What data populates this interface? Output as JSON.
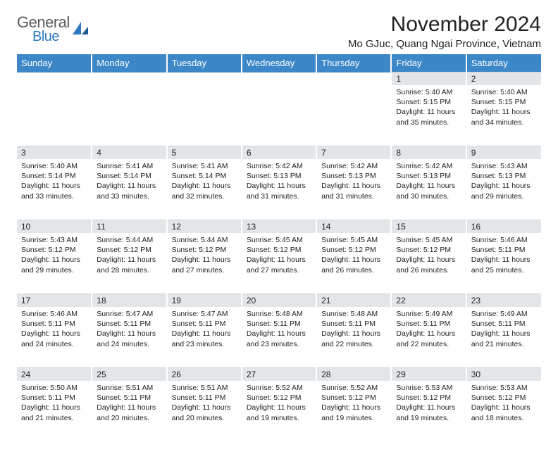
{
  "logo": {
    "general": "General",
    "blue": "Blue"
  },
  "title": "November 2024",
  "location": "Mo GJuc, Quang Ngai Province, Vietnam",
  "headers": [
    "Sunday",
    "Monday",
    "Tuesday",
    "Wednesday",
    "Thursday",
    "Friday",
    "Saturday"
  ],
  "colors": {
    "header_bg": "#3b87c8",
    "header_text": "#ffffff",
    "daynum_bg": "#e3e6e9",
    "text": "#222222",
    "logo_gray": "#5a5a5a",
    "logo_blue": "#2f78bf"
  },
  "weeks": [
    {
      "nums": [
        "",
        "",
        "",
        "",
        "",
        "1",
        "2"
      ],
      "cells": [
        null,
        null,
        null,
        null,
        null,
        {
          "sunrise": "Sunrise: 5:40 AM",
          "sunset": "Sunset: 5:15 PM",
          "daylight": "Daylight: 11 hours and 35 minutes."
        },
        {
          "sunrise": "Sunrise: 5:40 AM",
          "sunset": "Sunset: 5:15 PM",
          "daylight": "Daylight: 11 hours and 34 minutes."
        }
      ]
    },
    {
      "nums": [
        "3",
        "4",
        "5",
        "6",
        "7",
        "8",
        "9"
      ],
      "cells": [
        {
          "sunrise": "Sunrise: 5:40 AM",
          "sunset": "Sunset: 5:14 PM",
          "daylight": "Daylight: 11 hours and 33 minutes."
        },
        {
          "sunrise": "Sunrise: 5:41 AM",
          "sunset": "Sunset: 5:14 PM",
          "daylight": "Daylight: 11 hours and 33 minutes."
        },
        {
          "sunrise": "Sunrise: 5:41 AM",
          "sunset": "Sunset: 5:14 PM",
          "daylight": "Daylight: 11 hours and 32 minutes."
        },
        {
          "sunrise": "Sunrise: 5:42 AM",
          "sunset": "Sunset: 5:13 PM",
          "daylight": "Daylight: 11 hours and 31 minutes."
        },
        {
          "sunrise": "Sunrise: 5:42 AM",
          "sunset": "Sunset: 5:13 PM",
          "daylight": "Daylight: 11 hours and 31 minutes."
        },
        {
          "sunrise": "Sunrise: 5:42 AM",
          "sunset": "Sunset: 5:13 PM",
          "daylight": "Daylight: 11 hours and 30 minutes."
        },
        {
          "sunrise": "Sunrise: 5:43 AM",
          "sunset": "Sunset: 5:13 PM",
          "daylight": "Daylight: 11 hours and 29 minutes."
        }
      ]
    },
    {
      "nums": [
        "10",
        "11",
        "12",
        "13",
        "14",
        "15",
        "16"
      ],
      "cells": [
        {
          "sunrise": "Sunrise: 5:43 AM",
          "sunset": "Sunset: 5:12 PM",
          "daylight": "Daylight: 11 hours and 29 minutes."
        },
        {
          "sunrise": "Sunrise: 5:44 AM",
          "sunset": "Sunset: 5:12 PM",
          "daylight": "Daylight: 11 hours and 28 minutes."
        },
        {
          "sunrise": "Sunrise: 5:44 AM",
          "sunset": "Sunset: 5:12 PM",
          "daylight": "Daylight: 11 hours and 27 minutes."
        },
        {
          "sunrise": "Sunrise: 5:45 AM",
          "sunset": "Sunset: 5:12 PM",
          "daylight": "Daylight: 11 hours and 27 minutes."
        },
        {
          "sunrise": "Sunrise: 5:45 AM",
          "sunset": "Sunset: 5:12 PM",
          "daylight": "Daylight: 11 hours and 26 minutes."
        },
        {
          "sunrise": "Sunrise: 5:45 AM",
          "sunset": "Sunset: 5:12 PM",
          "daylight": "Daylight: 11 hours and 26 minutes."
        },
        {
          "sunrise": "Sunrise: 5:46 AM",
          "sunset": "Sunset: 5:11 PM",
          "daylight": "Daylight: 11 hours and 25 minutes."
        }
      ]
    },
    {
      "nums": [
        "17",
        "18",
        "19",
        "20",
        "21",
        "22",
        "23"
      ],
      "cells": [
        {
          "sunrise": "Sunrise: 5:46 AM",
          "sunset": "Sunset: 5:11 PM",
          "daylight": "Daylight: 11 hours and 24 minutes."
        },
        {
          "sunrise": "Sunrise: 5:47 AM",
          "sunset": "Sunset: 5:11 PM",
          "daylight": "Daylight: 11 hours and 24 minutes."
        },
        {
          "sunrise": "Sunrise: 5:47 AM",
          "sunset": "Sunset: 5:11 PM",
          "daylight": "Daylight: 11 hours and 23 minutes."
        },
        {
          "sunrise": "Sunrise: 5:48 AM",
          "sunset": "Sunset: 5:11 PM",
          "daylight": "Daylight: 11 hours and 23 minutes."
        },
        {
          "sunrise": "Sunrise: 5:48 AM",
          "sunset": "Sunset: 5:11 PM",
          "daylight": "Daylight: 11 hours and 22 minutes."
        },
        {
          "sunrise": "Sunrise: 5:49 AM",
          "sunset": "Sunset: 5:11 PM",
          "daylight": "Daylight: 11 hours and 22 minutes."
        },
        {
          "sunrise": "Sunrise: 5:49 AM",
          "sunset": "Sunset: 5:11 PM",
          "daylight": "Daylight: 11 hours and 21 minutes."
        }
      ]
    },
    {
      "nums": [
        "24",
        "25",
        "26",
        "27",
        "28",
        "29",
        "30"
      ],
      "cells": [
        {
          "sunrise": "Sunrise: 5:50 AM",
          "sunset": "Sunset: 5:11 PM",
          "daylight": "Daylight: 11 hours and 21 minutes."
        },
        {
          "sunrise": "Sunrise: 5:51 AM",
          "sunset": "Sunset: 5:11 PM",
          "daylight": "Daylight: 11 hours and 20 minutes."
        },
        {
          "sunrise": "Sunrise: 5:51 AM",
          "sunset": "Sunset: 5:11 PM",
          "daylight": "Daylight: 11 hours and 20 minutes."
        },
        {
          "sunrise": "Sunrise: 5:52 AM",
          "sunset": "Sunset: 5:12 PM",
          "daylight": "Daylight: 11 hours and 19 minutes."
        },
        {
          "sunrise": "Sunrise: 5:52 AM",
          "sunset": "Sunset: 5:12 PM",
          "daylight": "Daylight: 11 hours and 19 minutes."
        },
        {
          "sunrise": "Sunrise: 5:53 AM",
          "sunset": "Sunset: 5:12 PM",
          "daylight": "Daylight: 11 hours and 19 minutes."
        },
        {
          "sunrise": "Sunrise: 5:53 AM",
          "sunset": "Sunset: 5:12 PM",
          "daylight": "Daylight: 11 hours and 18 minutes."
        }
      ]
    }
  ]
}
